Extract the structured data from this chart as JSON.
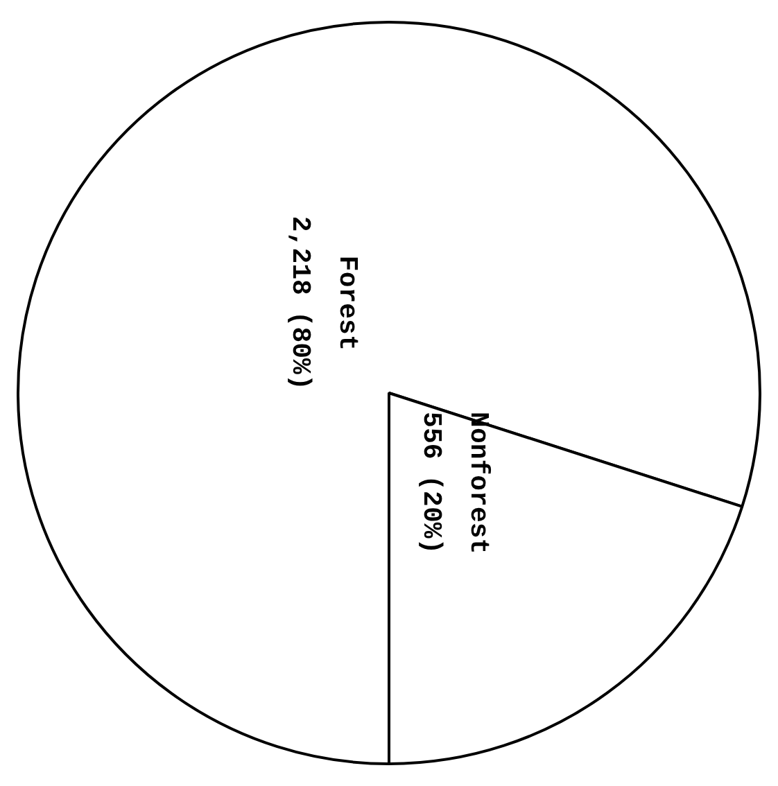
{
  "chart_data": {
    "type": "pie",
    "categories": [
      "Forest",
      "Nonforest"
    ],
    "values": [
      2218,
      556
    ],
    "value_labels": [
      "2,218 (80%)",
      "556 (20%)"
    ],
    "colors": [
      "#ffffff",
      "#ffffff"
    ],
    "legend": false
  }
}
